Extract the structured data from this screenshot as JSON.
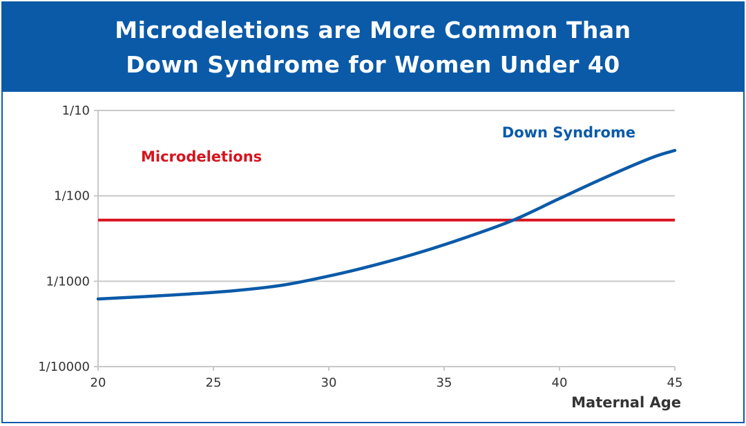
{
  "header": {
    "title_line1": "Microdeletions are More Common Than",
    "title_line2": "Down Syndrome for Women Under 40"
  },
  "colors": {
    "header_bg": "#0a5aa8",
    "down_syndrome": "#0a5aa8",
    "microdeletions": "#d7141e",
    "grid": "#c8c8c8"
  },
  "chart_data": {
    "type": "line",
    "xlabel": "Maternal Age",
    "ylabel": "",
    "x_ticks": [
      20,
      25,
      30,
      35,
      40,
      45
    ],
    "xlim": [
      20,
      45
    ],
    "y_scale": "log",
    "y_ticks": [
      {
        "value": 0.0001,
        "label": "1/10000"
      },
      {
        "value": 0.001,
        "label": "1/1000"
      },
      {
        "value": 0.01,
        "label": "1/100"
      },
      {
        "value": 0.1,
        "label": "1/10"
      }
    ],
    "ylim": [
      0.0001,
      0.1
    ],
    "grid": "horizontal",
    "series": [
      {
        "name": "Down Syndrome",
        "x": [
          20,
          22,
          24,
          26,
          28,
          30,
          32,
          34,
          36,
          38,
          40,
          42,
          44,
          45
        ],
        "y": [
          0.00062,
          0.00066,
          0.00071,
          0.00078,
          0.0009,
          0.00115,
          0.00155,
          0.0022,
          0.0033,
          0.0052,
          0.0093,
          0.0165,
          0.028,
          0.034
        ]
      },
      {
        "name": "Microdeletions",
        "x": [
          20,
          45
        ],
        "y": [
          0.0052,
          0.0052
        ]
      }
    ]
  }
}
